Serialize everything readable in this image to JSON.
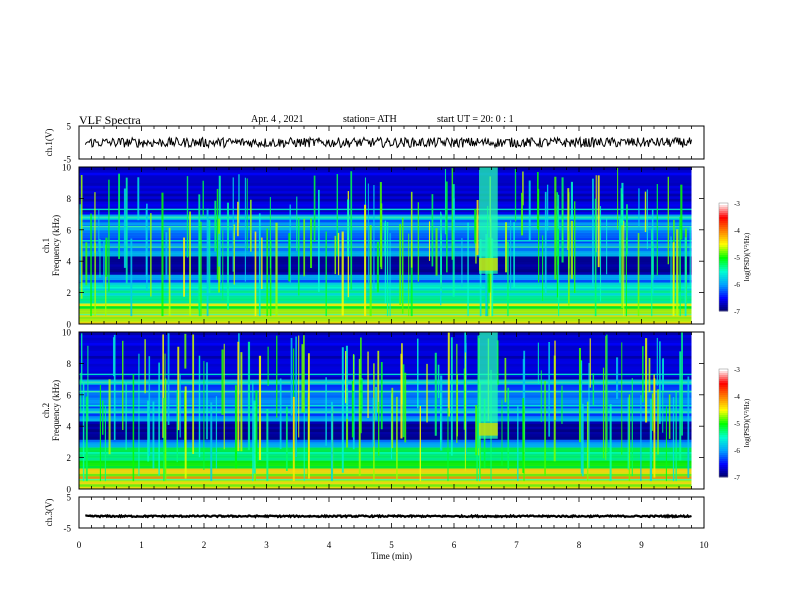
{
  "header": {
    "title": "VLF Spectra",
    "date": "Apr. 4 , 2021",
    "station": "station= ATH",
    "start_ut": "start UT = 20: 0 : 1"
  },
  "chart_data": {
    "type": "heatmap",
    "xlabel": "Time (min)",
    "xlim": [
      0,
      10
    ],
    "xticks": [
      "0",
      "1",
      "2",
      "3",
      "4",
      "5",
      "6",
      "7",
      "8",
      "9",
      "10"
    ],
    "panels": [
      {
        "name": "ch1-waveform",
        "ylabel": "ch.1(V)",
        "ylim": [
          -5,
          5
        ],
        "yticks": [
          "5",
          "-5"
        ],
        "waveform_level_v": 0,
        "waveform_amplitude_v": 1.5
      },
      {
        "name": "ch1-spectrogram",
        "ylabel": "Frequency (kHz)",
        "ylabel_prefix": "ch.1",
        "ylim": [
          0,
          10
        ],
        "yticks": [
          "10",
          "8",
          "6",
          "4",
          "2",
          "0"
        ],
        "data_end_min": 9.8,
        "burst": {
          "t_start_min": 6.4,
          "t_end_min": 6.7,
          "f_low_khz": 3.2,
          "f_high_khz": 10
        }
      },
      {
        "name": "ch2-spectrogram",
        "ylabel": "Frequency (kHz)",
        "ylabel_prefix": "ch.2",
        "ylim": [
          0,
          10
        ],
        "yticks": [
          "10",
          "8",
          "6",
          "4",
          "2",
          "0"
        ],
        "data_end_min": 9.8,
        "burst": {
          "t_start_min": 6.4,
          "t_end_min": 6.7,
          "f_low_khz": 3.2,
          "f_high_khz": 10
        }
      },
      {
        "name": "ch3-waveform",
        "ylabel": "ch.3(V)",
        "ylim": [
          -5,
          5
        ],
        "yticks": [
          "5",
          "-5"
        ],
        "waveform_level_v": -1.2,
        "waveform_amplitude_v": 0.25
      }
    ],
    "colorbar": {
      "label": "log(PSD)(V²/Hz)",
      "range": [
        -7,
        -3
      ],
      "ticks": [
        "-3",
        "-4",
        "-5",
        "-6",
        "-7"
      ],
      "colors": [
        "#000060",
        "#0000ff",
        "#00a0ff",
        "#00ffd0",
        "#00ff00",
        "#ffff00",
        "#ff8000",
        "#ff0000",
        "#ffffff"
      ]
    }
  }
}
